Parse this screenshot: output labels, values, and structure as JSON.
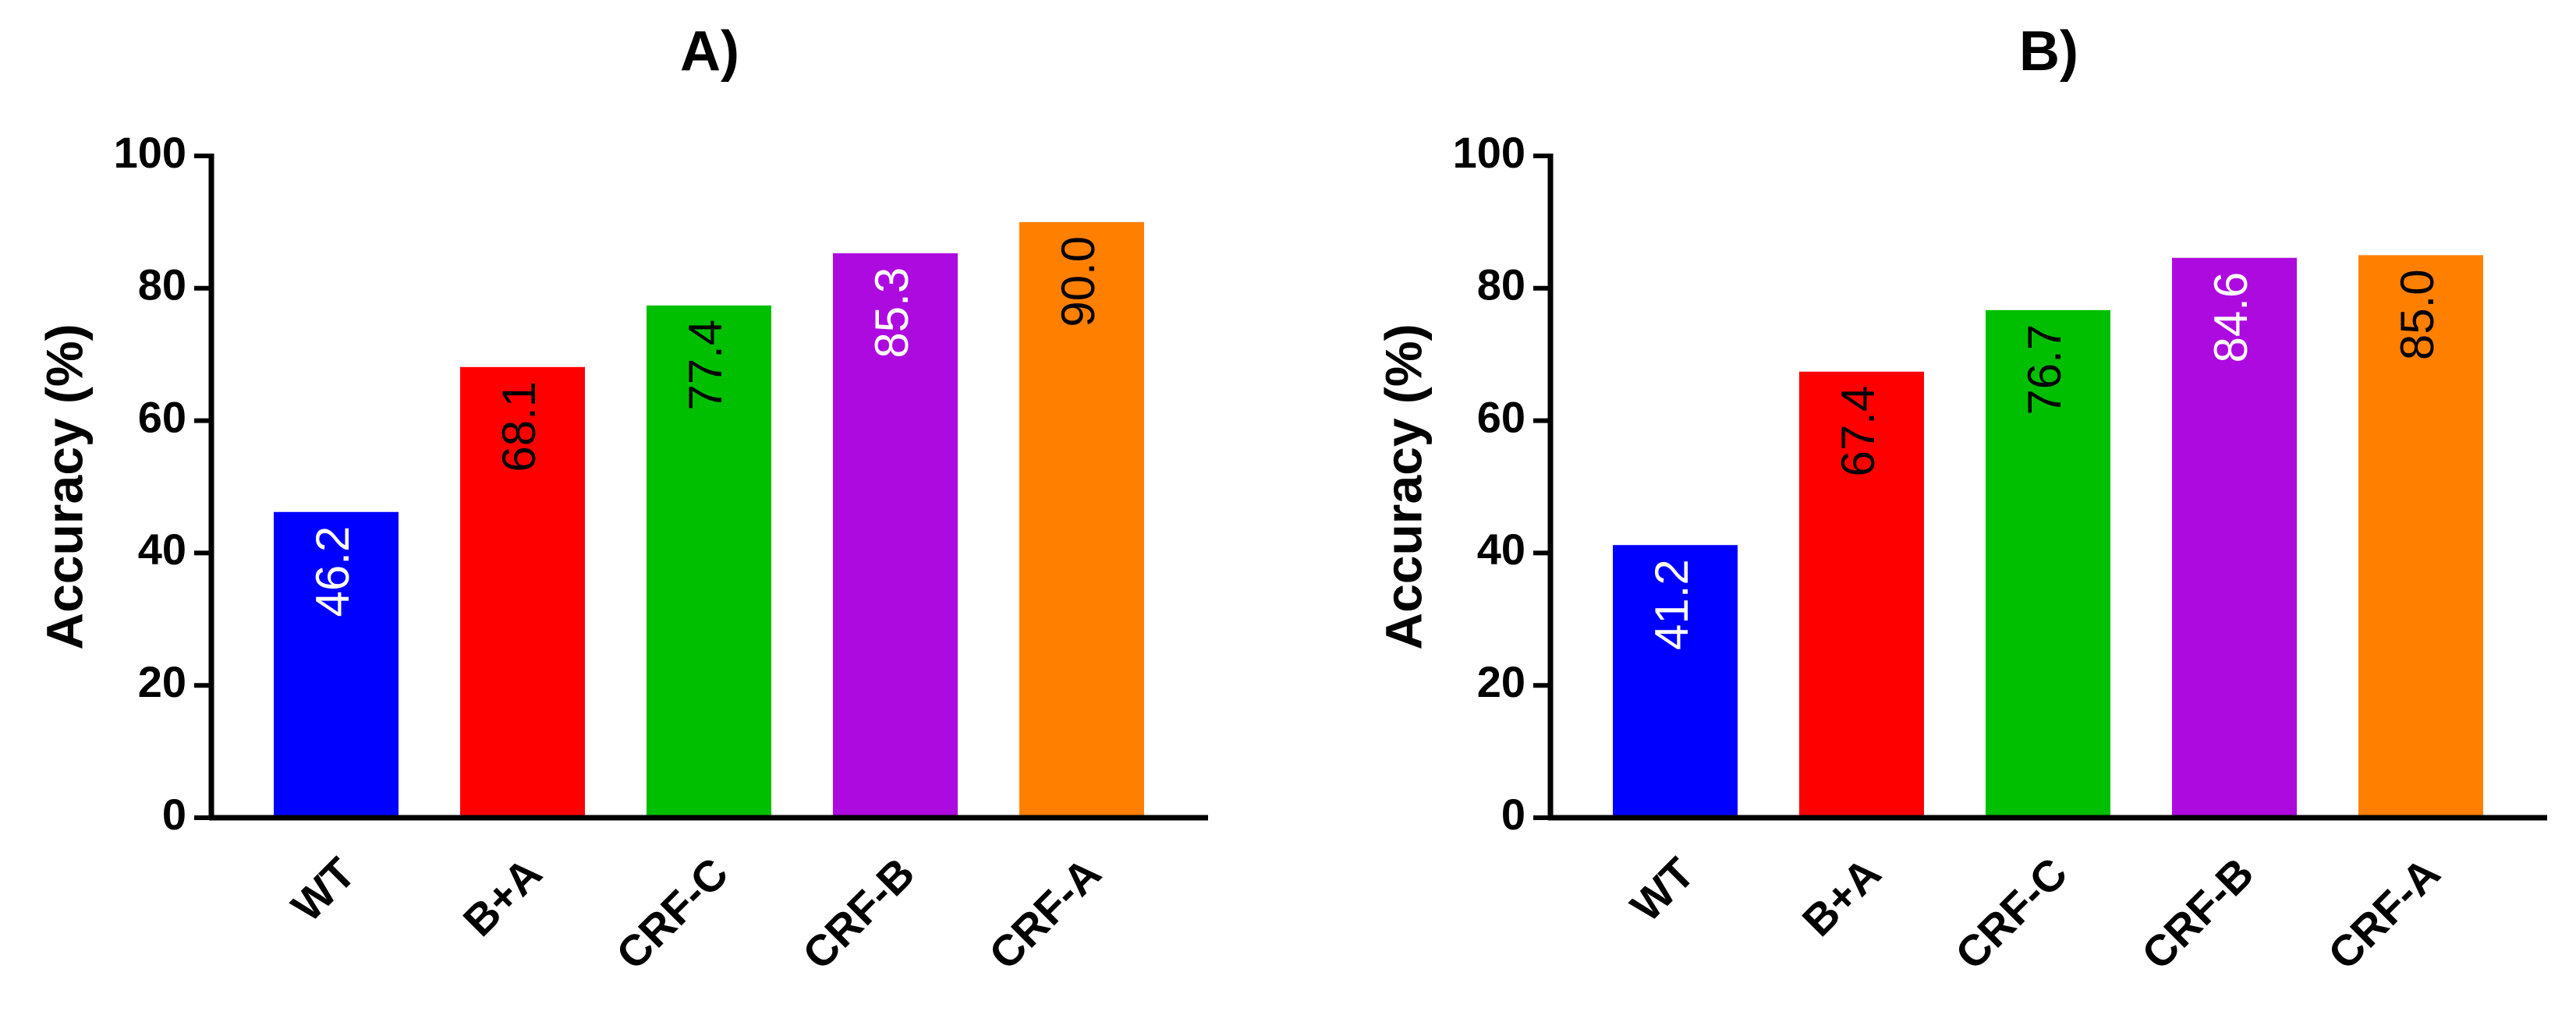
{
  "chart_data": [
    {
      "type": "bar",
      "title": "A)",
      "xlabel": "",
      "ylabel": "Accuracy (%)",
      "ylim": [
        0,
        100
      ],
      "yticks": [
        "0",
        "20",
        "40",
        "60",
        "80",
        "100"
      ],
      "categories": [
        "WT",
        "B+A",
        "CRF-C",
        "CRF-B",
        "CRF-A"
      ],
      "values": [
        46.2,
        68.1,
        77.4,
        85.3,
        90.0
      ],
      "value_labels": [
        "46.2",
        "68.1",
        "77.4",
        "85.3",
        "90.0"
      ],
      "colors": [
        "#0000ff",
        "#ff0000",
        "#00bf00",
        "#ad0ae0",
        "#ff8000"
      ],
      "label_colors": [
        "#ffffff",
        "#000000",
        "#000000",
        "#ffffff",
        "#000000"
      ]
    },
    {
      "type": "bar",
      "title": "B)",
      "xlabel": "",
      "ylabel": "Accuracy (%)",
      "ylim": [
        0,
        100
      ],
      "yticks": [
        "0",
        "20",
        "40",
        "60",
        "80",
        "100"
      ],
      "categories": [
        "WT",
        "B+A",
        "CRF-C",
        "CRF-B",
        "CRF-A"
      ],
      "values": [
        41.2,
        67.4,
        76.7,
        84.6,
        85.0
      ],
      "value_labels": [
        "41.2",
        "67.4",
        "76.7",
        "84.6",
        "85.0"
      ],
      "colors": [
        "#0000ff",
        "#ff0000",
        "#00bf00",
        "#ad0ae0",
        "#ff8000"
      ],
      "label_colors": [
        "#ffffff",
        "#000000",
        "#000000",
        "#ffffff",
        "#000000"
      ]
    }
  ]
}
